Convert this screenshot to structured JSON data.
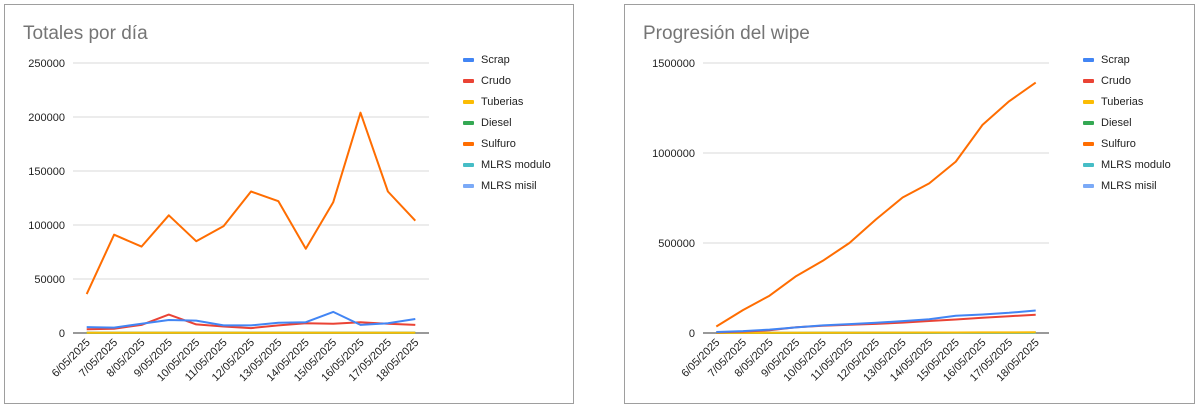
{
  "chart_data": [
    {
      "type": "line",
      "title": "Totales por día",
      "xlabel": "",
      "ylabel": "",
      "x": [
        "6/05/2025",
        "7/05/2025",
        "8/05/2025",
        "9/05/2025",
        "10/05/2025",
        "11/05/2025",
        "12/05/2025",
        "13/05/2025",
        "14/05/2025",
        "15/05/2025",
        "16/05/2025",
        "17/05/2025",
        "18/05/2025"
      ],
      "ylim": [
        0,
        250000
      ],
      "yticks": [
        "0",
        "50000",
        "100000",
        "150000",
        "200000",
        "250000"
      ],
      "grid": true,
      "legend_position": "right",
      "series": [
        {
          "name": "Scrap",
          "color": "#4285f4",
          "values": [
            5500,
            5000,
            8500,
            12000,
            11500,
            7000,
            7000,
            9500,
            10000,
            19500,
            7500,
            9000,
            13000
          ]
        },
        {
          "name": "Crudo",
          "color": "#ea4335",
          "values": [
            3500,
            4000,
            7500,
            17000,
            8000,
            6000,
            4500,
            7000,
            9000,
            8500,
            10000,
            8500,
            7500
          ]
        },
        {
          "name": "Tuberias",
          "color": "#fbbc04",
          "values": [
            300,
            300,
            300,
            300,
            300,
            300,
            300,
            300,
            300,
            300,
            300,
            300,
            300
          ]
        },
        {
          "name": "Diesel",
          "color": "#34a853",
          "values": [
            200,
            200,
            200,
            200,
            200,
            200,
            200,
            200,
            200,
            200,
            200,
            200,
            200
          ]
        },
        {
          "name": "Sulfuro",
          "color": "#ff6d01",
          "values": [
            36000,
            91000,
            80000,
            109000,
            85000,
            99000,
            131000,
            122000,
            78000,
            121000,
            204000,
            131000,
            104000
          ]
        },
        {
          "name": "MLRS modulo",
          "color": "#46bdc6",
          "values": [
            100,
            100,
            100,
            100,
            100,
            100,
            100,
            100,
            100,
            100,
            100,
            100,
            100
          ]
        },
        {
          "name": "MLRS misil",
          "color": "#7baaf7",
          "values": [
            100,
            100,
            100,
            100,
            100,
            100,
            100,
            100,
            100,
            100,
            100,
            100,
            100
          ]
        }
      ]
    },
    {
      "type": "line",
      "title": "Progresión del wipe",
      "xlabel": "",
      "ylabel": "",
      "x": [
        "6/05/2025",
        "7/05/2025",
        "8/05/2025",
        "9/05/2025",
        "10/05/2025",
        "11/05/2025",
        "12/05/2025",
        "13/05/2025",
        "14/05/2025",
        "15/05/2025",
        "16/05/2025",
        "17/05/2025",
        "18/05/2025"
      ],
      "ylim": [
        0,
        1500000
      ],
      "yticks": [
        "0",
        "500000",
        "1000000",
        "1500000"
      ],
      "grid": true,
      "legend_position": "right",
      "series": [
        {
          "name": "Scrap",
          "color": "#4285f4",
          "values": [
            5500,
            10500,
            19000,
            31000,
            42500,
            49500,
            56500,
            66000,
            76000,
            95500,
            103000,
            112000,
            125000
          ]
        },
        {
          "name": "Crudo",
          "color": "#ea4335",
          "values": [
            3500,
            7500,
            15000,
            32000,
            40000,
            46000,
            50500,
            57500,
            66500,
            75000,
            85000,
            93500,
            101000
          ]
        },
        {
          "name": "Tuberias",
          "color": "#fbbc04",
          "values": [
            300,
            600,
            900,
            1200,
            1500,
            1800,
            2100,
            2400,
            2700,
            3000,
            3300,
            3600,
            3900
          ]
        },
        {
          "name": "Diesel",
          "color": "#34a853",
          "values": [
            200,
            400,
            600,
            800,
            1000,
            1200,
            1400,
            1600,
            1800,
            2000,
            2200,
            2400,
            2600
          ]
        },
        {
          "name": "Sulfuro",
          "color": "#ff6d01",
          "values": [
            36000,
            127000,
            207000,
            316000,
            401000,
            500000,
            631000,
            753000,
            831000,
            952000,
            1156000,
            1287000,
            1391000
          ]
        },
        {
          "name": "MLRS modulo",
          "color": "#46bdc6",
          "values": [
            100,
            200,
            300,
            400,
            500,
            600,
            700,
            800,
            900,
            1000,
            1100,
            1200,
            1300
          ]
        },
        {
          "name": "MLRS misil",
          "color": "#7baaf7",
          "values": [
            100,
            200,
            300,
            400,
            500,
            600,
            700,
            800,
            900,
            1000,
            1100,
            1200,
            1300
          ]
        }
      ]
    }
  ]
}
